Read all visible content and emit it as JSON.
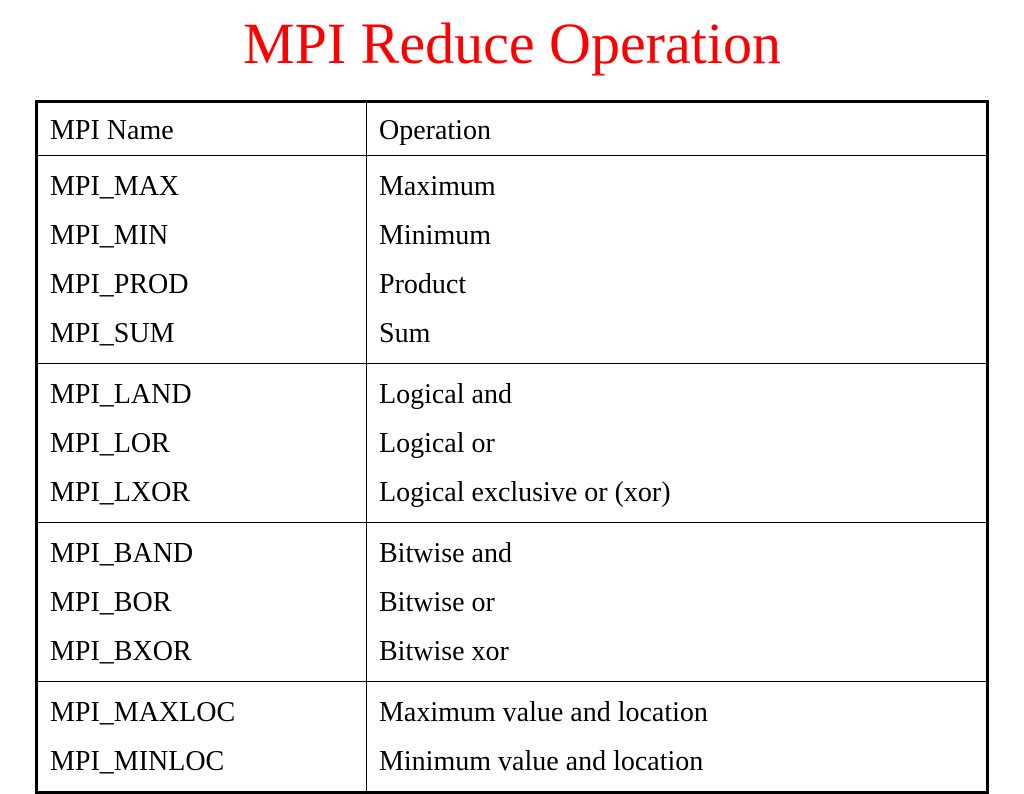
{
  "title": "MPI Reduce Operation",
  "table": {
    "headers": [
      "MPI Name",
      "Operation"
    ],
    "groups": [
      {
        "names": [
          "MPI_MAX",
          "MPI_MIN",
          "MPI_PROD",
          "MPI_SUM"
        ],
        "operations": [
          "Maximum",
          "Minimum",
          "Product",
          "Sum"
        ]
      },
      {
        "names": [
          "MPI_LAND",
          "MPI_LOR",
          "MPI_LXOR"
        ],
        "operations": [
          "Logical and",
          "Logical or",
          "Logical exclusive or (xor)"
        ]
      },
      {
        "names": [
          "MPI_BAND",
          "MPI_BOR",
          "MPI_BXOR"
        ],
        "operations": [
          "Bitwise and",
          "Bitwise or",
          "Bitwise xor"
        ]
      },
      {
        "names": [
          "MPI_MAXLOC",
          "MPI_MINLOC"
        ],
        "operations": [
          "Maximum value and location",
          "Minimum value and location"
        ]
      }
    ]
  },
  "colors": {
    "title": "#ff0000",
    "text": "#000000",
    "border": "#000000",
    "background": "#ffffff"
  }
}
